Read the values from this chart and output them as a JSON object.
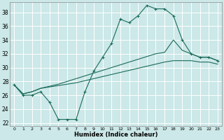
{
  "xlabel": "Humidex (Indice chaleur)",
  "bg_color": "#cce8e8",
  "grid_color": "#ffffff",
  "line_color": "#1a6b5a",
  "xlim": [
    -0.5,
    23.5
  ],
  "ylim": [
    21.5,
    39.5
  ],
  "yticks": [
    22,
    24,
    26,
    28,
    30,
    32,
    34,
    36,
    38
  ],
  "xticks": [
    0,
    1,
    2,
    3,
    4,
    5,
    6,
    7,
    8,
    9,
    10,
    11,
    12,
    13,
    14,
    15,
    16,
    17,
    18,
    19,
    20,
    21,
    22,
    23
  ],
  "curve1_x": [
    0,
    1,
    2,
    3,
    4,
    5,
    6,
    7,
    8,
    9,
    10,
    11,
    12,
    13,
    14,
    15,
    16,
    17,
    18,
    19,
    20,
    21,
    22,
    23
  ],
  "curve1_y": [
    27.5,
    26.0,
    26.0,
    26.5,
    25.0,
    22.5,
    22.5,
    22.5,
    26.5,
    29.5,
    31.5,
    33.5,
    37.0,
    36.5,
    37.5,
    39.0,
    38.5,
    38.5,
    37.5,
    34.0,
    32.0,
    31.5,
    31.5,
    31.0
  ],
  "curve2_x": [
    0,
    1,
    2,
    3,
    4,
    5,
    6,
    7,
    8,
    9,
    10,
    11,
    12,
    13,
    14,
    15,
    16,
    17,
    18,
    19,
    20,
    21,
    22,
    23
  ],
  "curve2_y": [
    27.5,
    26.2,
    26.5,
    27.0,
    27.3,
    27.6,
    28.0,
    28.4,
    28.8,
    29.2,
    29.6,
    30.0,
    30.4,
    30.8,
    31.2,
    31.6,
    32.0,
    32.2,
    34.0,
    32.5,
    32.0,
    31.5,
    31.5,
    31.0
  ],
  "curve3_x": [
    0,
    1,
    2,
    3,
    4,
    5,
    6,
    7,
    8,
    9,
    10,
    11,
    12,
    13,
    14,
    15,
    16,
    17,
    18,
    19,
    20,
    21,
    22,
    23
  ],
  "curve3_y": [
    27.5,
    26.2,
    26.5,
    27.0,
    27.2,
    27.4,
    27.6,
    27.8,
    28.1,
    28.4,
    28.7,
    29.0,
    29.3,
    29.6,
    29.9,
    30.2,
    30.5,
    30.8,
    31.0,
    31.0,
    31.0,
    30.8,
    30.8,
    30.5
  ]
}
